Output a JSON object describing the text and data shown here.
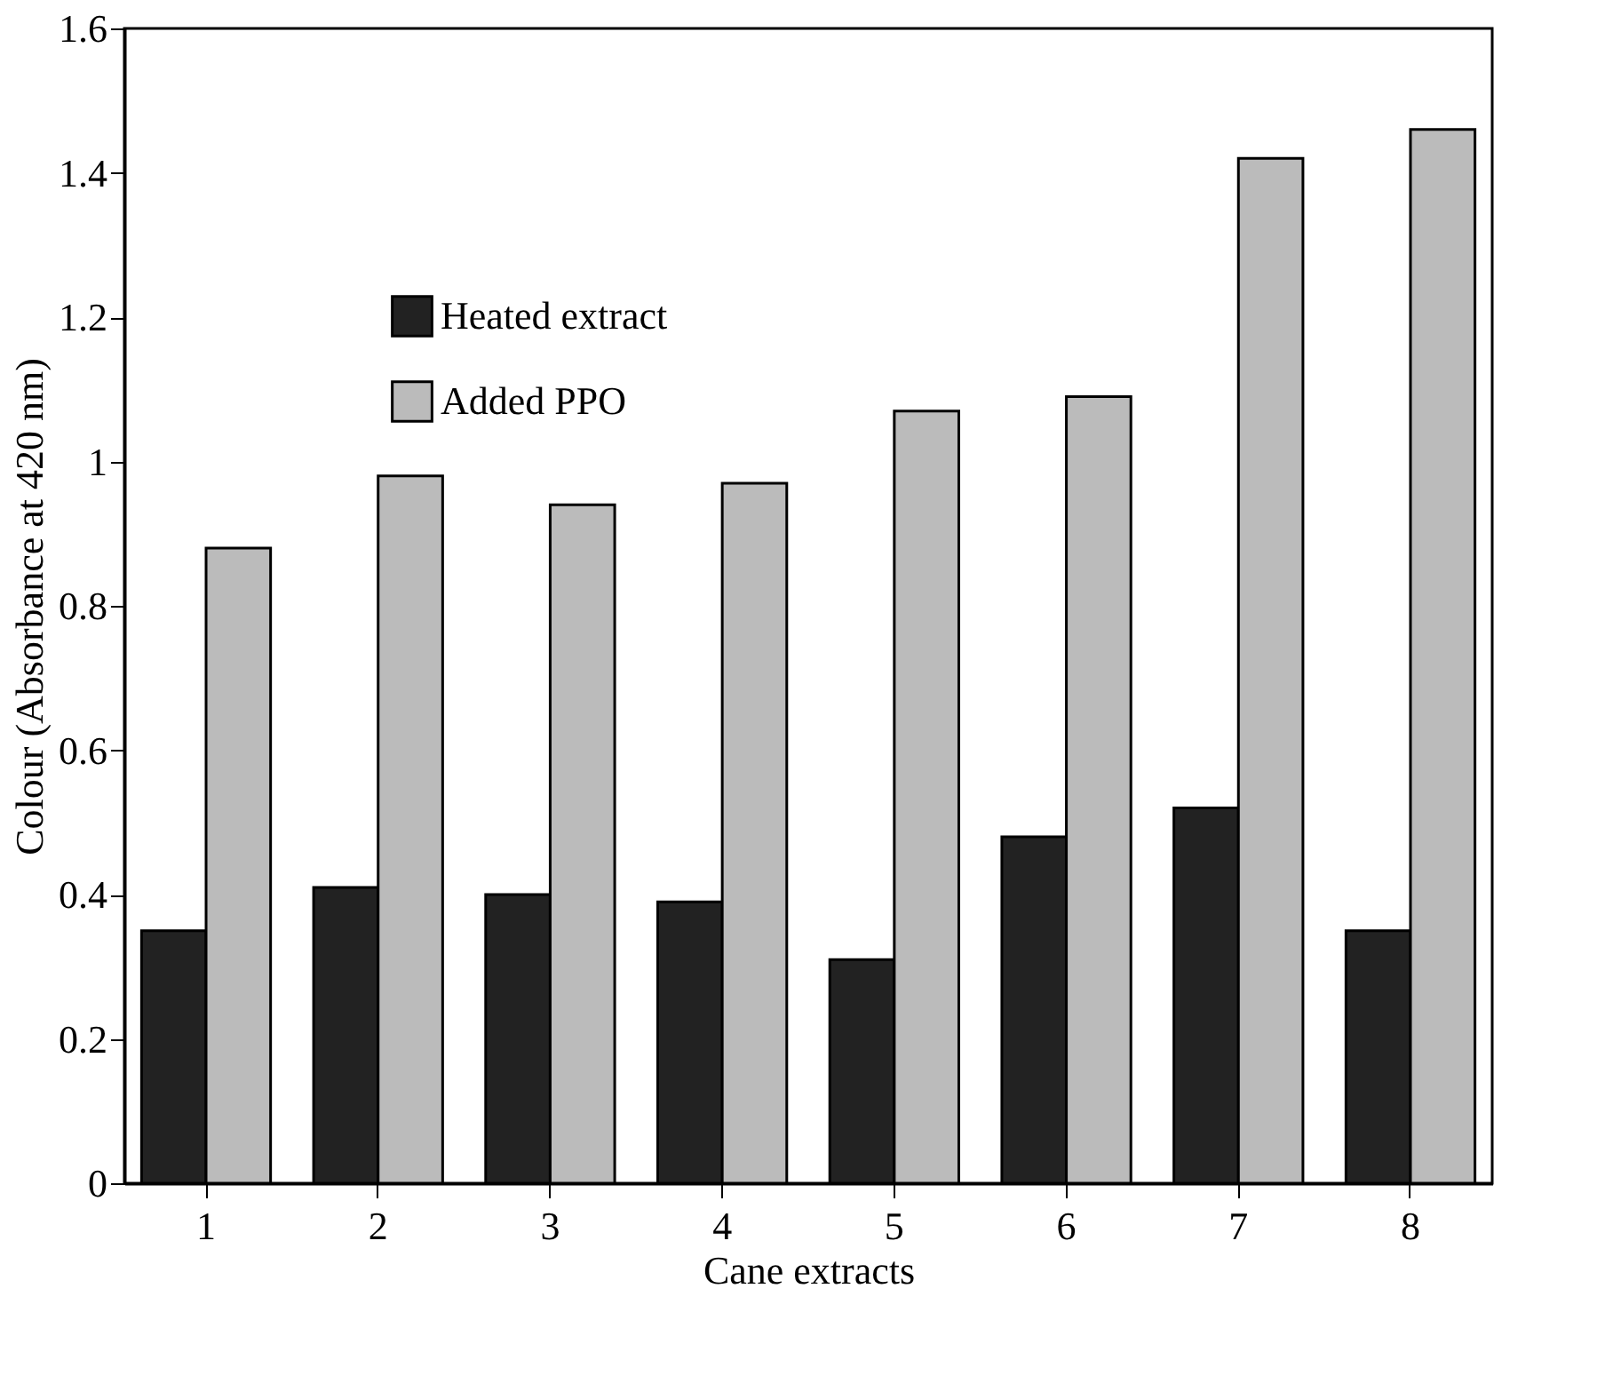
{
  "chart_data": {
    "type": "bar",
    "xlabel": "Cane extracts",
    "ylabel": "Colour (Absorbance at 420 nm)",
    "categories": [
      "1",
      "2",
      "3",
      "4",
      "5",
      "6",
      "7",
      "8"
    ],
    "series": [
      {
        "name": "Heated extract",
        "color": "#222222",
        "values": [
          0.35,
          0.41,
          0.4,
          0.39,
          0.31,
          0.48,
          0.52,
          0.35
        ]
      },
      {
        "name": "Added PPO",
        "color": "#bbbbbb",
        "values": [
          0.88,
          0.98,
          0.94,
          0.97,
          1.07,
          1.09,
          1.42,
          1.46
        ]
      }
    ],
    "ylim": [
      0,
      1.6
    ],
    "yticks": [
      0,
      0.2,
      0.4,
      0.6,
      0.8,
      1,
      1.2,
      1.4,
      1.6
    ],
    "grid": false,
    "legend": "top left"
  }
}
